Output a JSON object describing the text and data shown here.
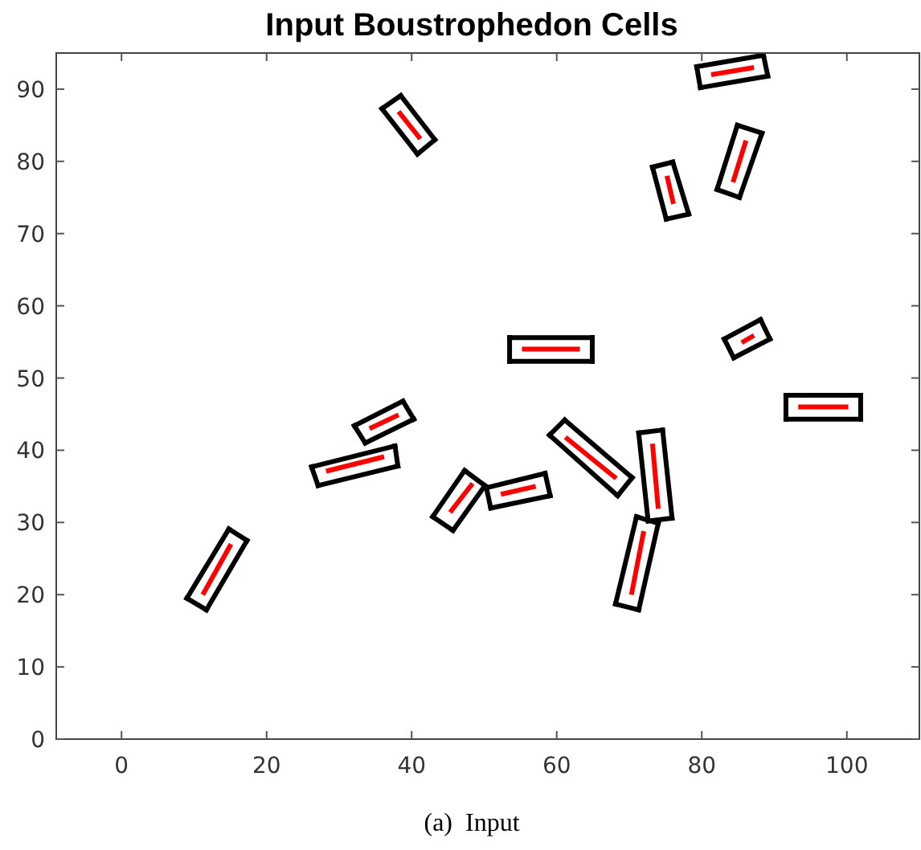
{
  "chart_data": {
    "type": "line",
    "title": "Input Boustrophedon Cells",
    "annotations": [
      "(a)  Input"
    ],
    "xlim": [
      -9,
      110
    ],
    "xticks": [
      0,
      20,
      40,
      60,
      80,
      100
    ],
    "ylim": [
      0,
      95
    ],
    "yticks": [
      0,
      10,
      20,
      30,
      40,
      50,
      60,
      70,
      80,
      90
    ],
    "series": [
      {
        "color": "#000000",
        "x": [
          35.9,
          38.5
        ],
        "values": [
          87.3,
          89.1
        ]
      },
      {
        "color": "#000000",
        "x": [
          38.5,
          43.2
        ],
        "values": [
          89.1,
          83.0
        ]
      },
      {
        "color": "#000000",
        "x": [
          43.2,
          40.8
        ],
        "values": [
          83.0,
          81.0
        ]
      },
      {
        "color": "#000000",
        "x": [
          40.8,
          35.9
        ],
        "values": [
          81.0,
          87.3
        ]
      },
      {
        "color": "#000000",
        "x": [
          79.3,
          88.5
        ],
        "values": [
          93.1,
          94.7
        ]
      },
      {
        "color": "#000000",
        "x": [
          88.5,
          89.1
        ],
        "values": [
          94.7,
          91.8
        ]
      },
      {
        "color": "#000000",
        "x": [
          89.1,
          79.8
        ],
        "values": [
          91.8,
          90.2
        ]
      },
      {
        "color": "#000000",
        "x": [
          79.8,
          79.3
        ],
        "values": [
          90.2,
          93.1
        ]
      },
      {
        "color": "#000000",
        "x": [
          84.9,
          88.3
        ],
        "values": [
          85.0,
          83.9
        ]
      },
      {
        "color": "#000000",
        "x": [
          88.3,
          85.2
        ],
        "values": [
          83.9,
          75.0
        ]
      },
      {
        "color": "#000000",
        "x": [
          85.2,
          82.1
        ],
        "values": [
          75.0,
          76.1
        ]
      },
      {
        "color": "#000000",
        "x": [
          82.1,
          84.9
        ],
        "values": [
          76.1,
          85.0
        ]
      },
      {
        "color": "#000000",
        "x": [
          73.2,
          76.0
        ],
        "values": [
          79.2,
          79.9
        ]
      },
      {
        "color": "#000000",
        "x": [
          76.0,
          78.2
        ],
        "values": [
          79.9,
          72.7
        ]
      },
      {
        "color": "#000000",
        "x": [
          78.2,
          75.1
        ],
        "values": [
          72.7,
          72.0
        ]
      },
      {
        "color": "#000000",
        "x": [
          75.1,
          73.2
        ],
        "values": [
          72.0,
          79.2
        ]
      },
      {
        "color": "#000000",
        "x": [
          83.1,
          88.1
        ],
        "values": [
          55.4,
          58.1
        ]
      },
      {
        "color": "#000000",
        "x": [
          88.1,
          89.4
        ],
        "values": [
          58.1,
          55.4
        ]
      },
      {
        "color": "#000000",
        "x": [
          89.4,
          84.4
        ],
        "values": [
          55.4,
          52.8
        ]
      },
      {
        "color": "#000000",
        "x": [
          84.4,
          83.1
        ],
        "values": [
          52.8,
          55.4
        ]
      },
      {
        "color": "#000000",
        "x": [
          53.5,
          64.9
        ],
        "values": [
          55.6,
          55.6
        ]
      },
      {
        "color": "#000000",
        "x": [
          64.9,
          64.9
        ],
        "values": [
          55.6,
          52.3
        ]
      },
      {
        "color": "#000000",
        "x": [
          64.9,
          53.5
        ],
        "values": [
          52.3,
          52.3
        ]
      },
      {
        "color": "#000000",
        "x": [
          53.5,
          53.5
        ],
        "values": [
          52.3,
          55.6
        ]
      },
      {
        "color": "#000000",
        "x": [
          91.6,
          101.9
        ],
        "values": [
          47.6,
          47.6
        ]
      },
      {
        "color": "#000000",
        "x": [
          101.9,
          101.9
        ],
        "values": [
          47.6,
          44.3
        ]
      },
      {
        "color": "#000000",
        "x": [
          101.9,
          91.6
        ],
        "values": [
          44.3,
          44.3
        ]
      },
      {
        "color": "#000000",
        "x": [
          91.6,
          91.6
        ],
        "values": [
          44.3,
          47.6
        ]
      },
      {
        "color": "#000000",
        "x": [
          59.0,
          61.1
        ],
        "values": [
          42.1,
          44.2
        ]
      },
      {
        "color": "#000000",
        "x": [
          61.1,
          70.4
        ],
        "values": [
          44.2,
          36.2
        ]
      },
      {
        "color": "#000000",
        "x": [
          70.4,
          68.4
        ],
        "values": [
          36.2,
          33.7
        ]
      },
      {
        "color": "#000000",
        "x": [
          68.4,
          59.0
        ],
        "values": [
          33.7,
          42.1
        ]
      },
      {
        "color": "#000000",
        "x": [
          71.3,
          74.6
        ],
        "values": [
          42.4,
          42.8
        ]
      },
      {
        "color": "#000000",
        "x": [
          74.6,
          75.9
        ],
        "values": [
          42.8,
          30.6
        ]
      },
      {
        "color": "#000000",
        "x": [
          75.9,
          72.6
        ],
        "values": [
          30.6,
          30.2
        ]
      },
      {
        "color": "#000000",
        "x": [
          72.6,
          71.3
        ],
        "values": [
          30.2,
          42.4
        ]
      },
      {
        "color": "#000000",
        "x": [
          71.0,
          74.0
        ],
        "values": [
          30.8,
          29.9
        ]
      },
      {
        "color": "#000000",
        "x": [
          74.0,
          71.3
        ],
        "values": [
          29.9,
          17.9
        ]
      },
      {
        "color": "#000000",
        "x": [
          71.3,
          68.1
        ],
        "values": [
          17.9,
          18.7
        ]
      },
      {
        "color": "#000000",
        "x": [
          68.1,
          71.0
        ],
        "values": [
          18.7,
          30.8
        ]
      },
      {
        "color": "#000000",
        "x": [
          50.3,
          58.4
        ],
        "values": [
          34.8,
          36.8
        ]
      },
      {
        "color": "#000000",
        "x": [
          58.4,
          59.1
        ],
        "values": [
          36.8,
          33.7
        ]
      },
      {
        "color": "#000000",
        "x": [
          59.1,
          50.9
        ],
        "values": [
          33.7,
          32.0
        ]
      },
      {
        "color": "#000000",
        "x": [
          50.9,
          50.3
        ],
        "values": [
          32.0,
          34.8
        ]
      },
      {
        "color": "#000000",
        "x": [
          42.9,
          47.3
        ],
        "values": [
          30.8,
          37.2
        ]
      },
      {
        "color": "#000000",
        "x": [
          47.3,
          50.1
        ],
        "values": [
          37.2,
          35.1
        ]
      },
      {
        "color": "#000000",
        "x": [
          50.1,
          45.7
        ],
        "values": [
          35.1,
          28.9
        ]
      },
      {
        "color": "#000000",
        "x": [
          45.7,
          42.9
        ],
        "values": [
          28.9,
          30.8
        ]
      },
      {
        "color": "#000000",
        "x": [
          9.0,
          14.8
        ],
        "values": [
          19.5,
          29.1
        ]
      },
      {
        "color": "#000000",
        "x": [
          14.8,
          17.3
        ],
        "values": [
          29.1,
          27.5
        ]
      },
      {
        "color": "#000000",
        "x": [
          17.3,
          11.7
        ],
        "values": [
          27.5,
          17.9
        ]
      },
      {
        "color": "#000000",
        "x": [
          11.7,
          9.0
        ],
        "values": [
          17.9,
          19.5
        ]
      },
      {
        "color": "#000000",
        "x": [
          26.2,
          37.7
        ],
        "values": [
          37.7,
          40.6
        ]
      },
      {
        "color": "#000000",
        "x": [
          37.7,
          38.1
        ],
        "values": [
          40.6,
          37.8
        ]
      },
      {
        "color": "#000000",
        "x": [
          38.1,
          27.1
        ],
        "values": [
          37.8,
          35.1
        ]
      },
      {
        "color": "#000000",
        "x": [
          27.1,
          26.2
        ],
        "values": [
          35.1,
          37.7
        ]
      },
      {
        "color": "#000000",
        "x": [
          32.1,
          38.8
        ],
        "values": [
          43.4,
          46.8
        ]
      },
      {
        "color": "#000000",
        "x": [
          38.8,
          40.3
        ],
        "values": [
          46.8,
          44.3
        ]
      },
      {
        "color": "#000000",
        "x": [
          40.3,
          33.6
        ],
        "values": [
          44.3,
          41.0
        ]
      },
      {
        "color": "#000000",
        "x": [
          33.6,
          32.1
        ],
        "values": [
          41.0,
          43.4
        ]
      },
      {
        "color": "#ff0000",
        "x": [
          38.2,
          41.2
        ],
        "values": [
          86.9,
          83.1
        ]
      },
      {
        "color": "#ff0000",
        "x": [
          81.3,
          87.2
        ],
        "values": [
          92.0,
          93.0
        ]
      },
      {
        "color": "#ff0000",
        "x": [
          86.1,
          84.3
        ],
        "values": [
          82.9,
          77.1
        ]
      },
      {
        "color": "#ff0000",
        "x": [
          75.2,
          76.1
        ],
        "values": [
          78.0,
          74.1
        ]
      },
      {
        "color": "#ff0000",
        "x": [
          85.5,
          87.2
        ],
        "values": [
          54.9,
          55.9
        ]
      },
      {
        "color": "#ff0000",
        "x": [
          55.2,
          63.2
        ],
        "values": [
          54.0,
          54.0
        ]
      },
      {
        "color": "#ff0000",
        "x": [
          93.3,
          100.2
        ],
        "values": [
          46.0,
          46.0
        ]
      },
      {
        "color": "#ff0000",
        "x": [
          61.2,
          68.2
        ],
        "values": [
          41.8,
          36.1
        ]
      },
      {
        "color": "#ff0000",
        "x": [
          73.2,
          74.0
        ],
        "values": [
          40.9,
          31.9
        ]
      },
      {
        "color": "#ff0000",
        "x": [
          72.0,
          70.3
        ],
        "values": [
          28.8,
          20.0
        ]
      },
      {
        "color": "#ff0000",
        "x": [
          52.3,
          57.1
        ],
        "values": [
          33.9,
          35.0
        ]
      },
      {
        "color": "#ff0000",
        "x": [
          45.3,
          48.4
        ],
        "values": [
          31.4,
          35.4
        ]
      },
      {
        "color": "#ff0000",
        "x": [
          11.2,
          15.1
        ],
        "values": [
          20.0,
          27.0
        ]
      },
      {
        "color": "#ff0000",
        "x": [
          28.2,
          36.2
        ],
        "values": [
          37.1,
          39.1
        ]
      },
      {
        "color": "#ff0000",
        "x": [
          34.2,
          38.2
        ],
        "values": [
          43.0,
          44.9
        ]
      }
    ]
  }
}
